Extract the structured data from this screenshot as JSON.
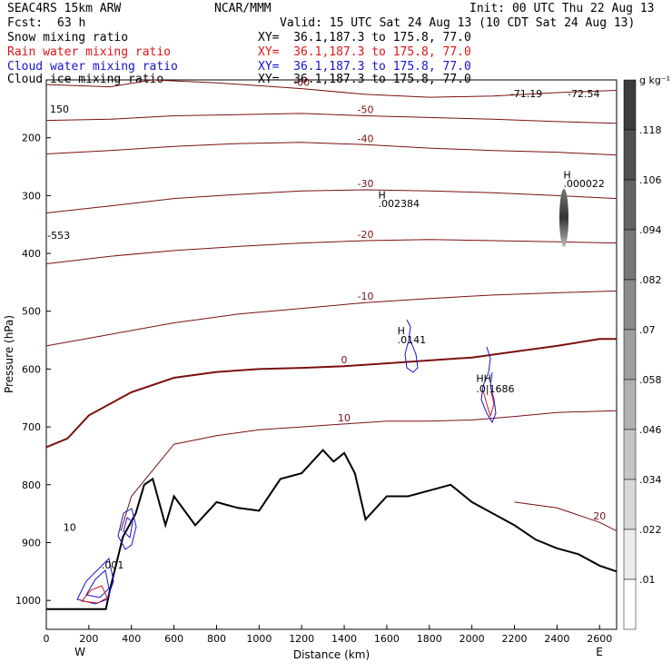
{
  "header": {
    "model": "SEAC4RS 15km ARW",
    "center": "NCAR/MMM",
    "init": "Init: 00 UTC Thu 22 Aug 13",
    "fcst_label": "Fcst:",
    "fcst_value": "63 h",
    "valid": "Valid: 15 UTC Sat 24 Aug 13 (10 CDT Sat 24 Aug 13)"
  },
  "fields": [
    {
      "name": "Snow mixing ratio",
      "xy": "XY=  36.1,187.3 to 175.8, 77.0",
      "color": "#000000"
    },
    {
      "name": "Rain water mixing ratio",
      "xy": "XY=  36.1,187.3 to 175.8, 77.0",
      "color": "#e01414"
    },
    {
      "name": "Cloud water mixing ratio",
      "xy": "XY=  36.1,187.3 to 175.8, 77.0",
      "color": "#1414d2"
    },
    {
      "name": "Cloud ice mixing ratio",
      "xy": "XY=  36.1,187.3 to 175.8, 77.0",
      "color": "#000000"
    }
  ],
  "chart_data": {
    "type": "contour",
    "xlabel": "Distance (km)",
    "ylabel": "Pressure (hPa)",
    "xlim": [
      0,
      2680
    ],
    "ylim": [
      1050,
      100
    ],
    "x_ticks": [
      "0",
      "200",
      "400",
      "600",
      "800",
      "1000",
      "1200",
      "1400",
      "1600",
      "1800",
      "2000",
      "2200",
      "2400",
      "2600"
    ],
    "y_ticks": [
      "200",
      "300",
      "400",
      "500",
      "600",
      "700",
      "800",
      "900",
      "1000"
    ],
    "y_tick_top": "150",
    "x_end_labels": {
      "left": "W",
      "right": "E"
    },
    "colorbar": {
      "unit": "g kg⁻¹",
      "labels": [
        ".118",
        ".106",
        ".094",
        ".082",
        ".07",
        ".058",
        ".046",
        ".034",
        ".022",
        ".01"
      ]
    },
    "temperature_contours": [
      {
        "value": -60,
        "points": [
          [
            0,
            108
          ],
          [
            300,
            112
          ],
          [
            500,
            100
          ],
          [
            800,
            105
          ],
          [
            1000,
            110
          ],
          [
            1200,
            115
          ],
          [
            1500,
            125
          ],
          [
            1800,
            130
          ],
          [
            2100,
            128
          ],
          [
            2400,
            122
          ],
          [
            2680,
            118
          ]
        ]
      },
      {
        "value": -50,
        "points": [
          [
            0,
            170
          ],
          [
            300,
            168
          ],
          [
            600,
            162
          ],
          [
            900,
            160
          ],
          [
            1200,
            158
          ],
          [
            1500,
            162
          ],
          [
            1800,
            165
          ],
          [
            2100,
            168
          ],
          [
            2400,
            172
          ],
          [
            2680,
            175
          ]
        ]
      },
      {
        "value": -40,
        "points": [
          [
            0,
            228
          ],
          [
            300,
            222
          ],
          [
            600,
            215
          ],
          [
            900,
            210
          ],
          [
            1200,
            208
          ],
          [
            1500,
            212
          ],
          [
            1800,
            218
          ],
          [
            2100,
            222
          ],
          [
            2400,
            225
          ],
          [
            2680,
            230
          ]
        ]
      },
      {
        "value": -30,
        "points": [
          [
            0,
            330
          ],
          [
            300,
            318
          ],
          [
            600,
            305
          ],
          [
            900,
            298
          ],
          [
            1200,
            292
          ],
          [
            1500,
            290
          ],
          [
            1800,
            292
          ],
          [
            2100,
            295
          ],
          [
            2400,
            300
          ],
          [
            2680,
            305
          ]
        ]
      },
      {
        "value": -20,
        "points": [
          [
            0,
            418
          ],
          [
            300,
            405
          ],
          [
            600,
            395
          ],
          [
            900,
            388
          ],
          [
            1200,
            382
          ],
          [
            1500,
            378
          ],
          [
            1800,
            376
          ],
          [
            2100,
            378
          ],
          [
            2400,
            380
          ],
          [
            2680,
            382
          ]
        ]
      },
      {
        "value": -10,
        "points": [
          [
            0,
            560
          ],
          [
            300,
            540
          ],
          [
            600,
            520
          ],
          [
            900,
            505
          ],
          [
            1200,
            495
          ],
          [
            1500,
            485
          ],
          [
            1800,
            478
          ],
          [
            2100,
            472
          ],
          [
            2400,
            468
          ],
          [
            2680,
            465
          ]
        ]
      },
      {
        "value": 0,
        "points": [
          [
            0,
            735
          ],
          [
            100,
            720
          ],
          [
            200,
            680
          ],
          [
            400,
            640
          ],
          [
            600,
            615
          ],
          [
            800,
            605
          ],
          [
            1000,
            600
          ],
          [
            1200,
            598
          ],
          [
            1400,
            595
          ],
          [
            1600,
            590
          ],
          [
            1800,
            585
          ],
          [
            2000,
            580
          ],
          [
            2200,
            570
          ],
          [
            2400,
            560
          ],
          [
            2600,
            548
          ],
          [
            2680,
            548
          ]
        ]
      },
      {
        "value": 10,
        "points": [
          [
            350,
            880
          ],
          [
            400,
            820
          ],
          [
            600,
            730
          ],
          [
            800,
            715
          ],
          [
            1000,
            705
          ],
          [
            1200,
            700
          ],
          [
            1400,
            695
          ],
          [
            1600,
            690
          ],
          [
            1800,
            690
          ],
          [
            2000,
            688
          ],
          [
            2200,
            682
          ],
          [
            2400,
            675
          ],
          [
            2680,
            672
          ]
        ]
      },
      {
        "value": 20,
        "points": [
          [
            2200,
            830
          ],
          [
            2400,
            840
          ],
          [
            2600,
            865
          ],
          [
            2680,
            880
          ]
        ]
      }
    ],
    "terrain": [
      [
        0,
        1015
      ],
      [
        280,
        1015
      ],
      [
        300,
        980
      ],
      [
        360,
        890
      ],
      [
        420,
        850
      ],
      [
        460,
        800
      ],
      [
        500,
        790
      ],
      [
        560,
        870
      ],
      [
        600,
        820
      ],
      [
        700,
        870
      ],
      [
        800,
        830
      ],
      [
        900,
        840
      ],
      [
        1000,
        845
      ],
      [
        1100,
        790
      ],
      [
        1200,
        780
      ],
      [
        1300,
        740
      ],
      [
        1350,
        760
      ],
      [
        1400,
        745
      ],
      [
        1450,
        780
      ],
      [
        1500,
        860
      ],
      [
        1600,
        820
      ],
      [
        1700,
        820
      ],
      [
        1800,
        810
      ],
      [
        1900,
        800
      ],
      [
        2000,
        830
      ],
      [
        2100,
        850
      ],
      [
        2200,
        870
      ],
      [
        2300,
        895
      ],
      [
        2400,
        910
      ],
      [
        2500,
        920
      ],
      [
        2600,
        940
      ],
      [
        2680,
        950
      ]
    ],
    "labels": [
      {
        "text": "-71.19",
        "x": 2180,
        "p": 130
      },
      {
        "text": "-72.54",
        "x": 2450,
        "p": 130
      },
      {
        "text": "H",
        "x": 1560,
        "p": 305
      },
      {
        "text": ".002384",
        "x": 1560,
        "p": 320
      },
      {
        "text": "H",
        "x": 2430,
        "p": 270
      },
      {
        "text": ".000022",
        "x": 2430,
        "p": 285
      },
      {
        "text": "-553",
        "x": 5,
        "p": 375
      },
      {
        "text": "H",
        "x": 1650,
        "p": 540
      },
      {
        "text": ".0141",
        "x": 1650,
        "p": 555
      },
      {
        "text": "HH",
        "x": 2020,
        "p": 622
      },
      {
        "text": ".0|1686",
        "x": 2020,
        "p": 640
      },
      {
        "text": ".001",
        "x": 260,
        "p": 945
      },
      {
        "text": "10",
        "x": 80,
        "p": 880
      }
    ]
  }
}
